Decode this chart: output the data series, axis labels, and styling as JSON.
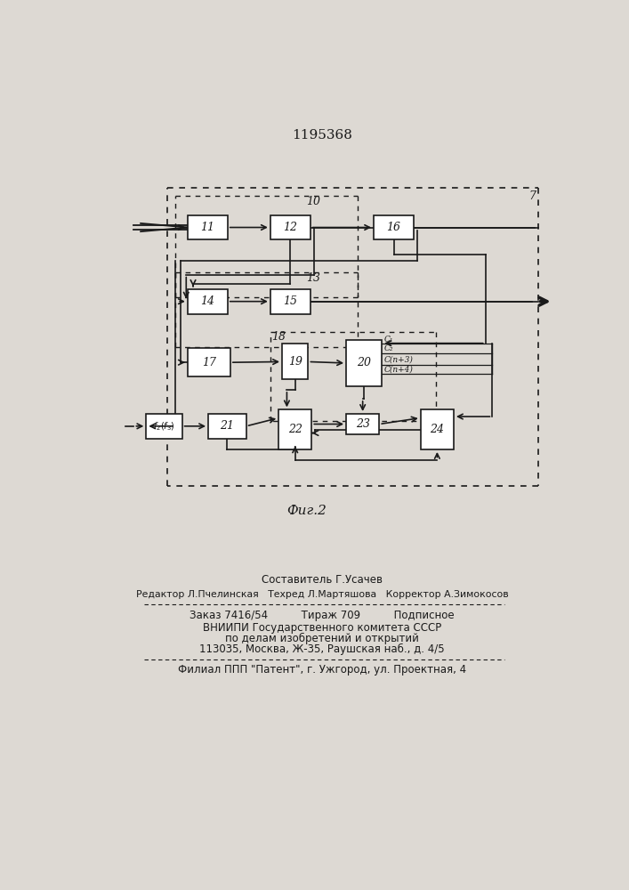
{
  "title": "1195368",
  "fig_caption": "Фиг.2",
  "line_color": "#1a1a1a",
  "box_color": "#ffffff",
  "page_bg": "#ddd9d3",
  "footer_lines": [
    "Составитель Г.Усачев",
    "Редактор Л.Пчелинская   Техред Л.Мартяшова   Корректор А.Зимокосов",
    "Заказ 7416/54          Тираж 709          Подписное",
    "ВНИИПИ Государственного комитета СССР",
    "по делам изобретений и открытий",
    "113035, Москва, Ж-35, Раушская наб., д. 4/5",
    "Филиал ППП \"Патент\", г. Ужгород, ул. Проектная, 4"
  ]
}
